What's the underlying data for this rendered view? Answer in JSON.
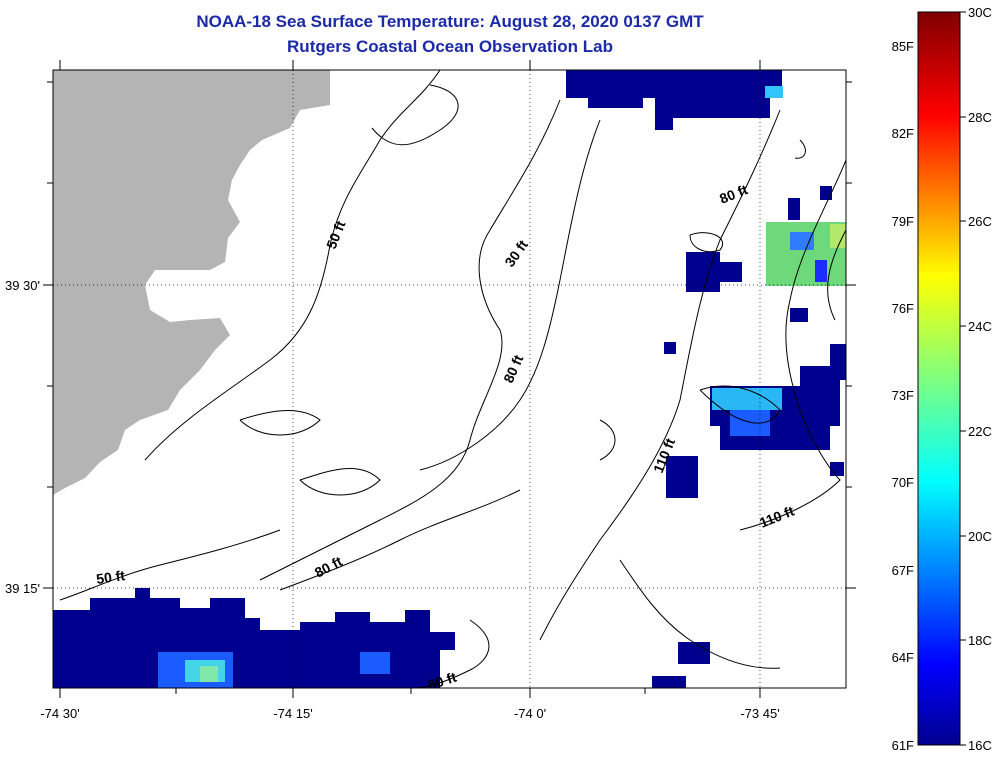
{
  "map": {
    "title": "NOAA-18 Sea Surface Temperature:  August 28, 2020 0137 GMT",
    "subtitle": "Rutgers Coastal Ocean Observation Lab",
    "lon_ticks": [
      "-74 30'",
      "-74 15'",
      "-74 0'",
      "-73 45'"
    ],
    "lat_ticks": [
      "39 30'",
      "39 15'"
    ],
    "depth_labels": [
      "50 ft",
      "30 ft",
      "80 ft",
      "80 ft",
      "80 ft",
      "110 ft",
      "110 ft",
      "50 ft",
      "80 ft",
      "80 ft"
    ],
    "colors": {
      "land": "#b4b4b4",
      "title": "#1c2aa8",
      "cold": "#00008f"
    }
  },
  "colorbar": {
    "min_c": 16,
    "max_c": 30,
    "celsius_labels": [
      "30C",
      "28C",
      "26C",
      "24C",
      "22C",
      "20C",
      "18C",
      "16C"
    ],
    "fahrenheit_labels": [
      "85F",
      "82F",
      "79F",
      "76F",
      "73F",
      "70F",
      "67F",
      "64F",
      "61F"
    ]
  }
}
